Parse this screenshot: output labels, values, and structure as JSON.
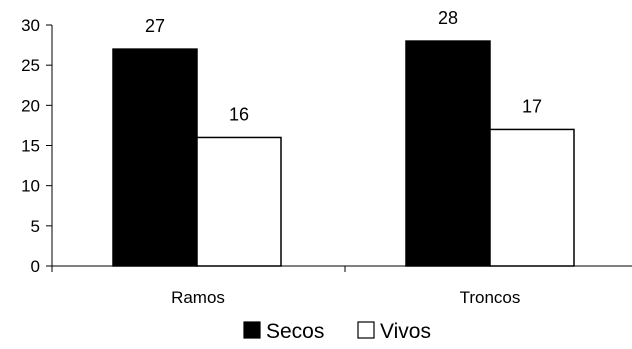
{
  "chart_data": {
    "type": "bar",
    "categories": [
      "Ramos",
      "Troncos"
    ],
    "series": [
      {
        "name": "Secos",
        "values": [
          27,
          28
        ],
        "fill": "#000000"
      },
      {
        "name": "Vivos",
        "values": [
          16,
          17
        ],
        "fill": "#ffffff"
      }
    ],
    "ylim": [
      0,
      30
    ],
    "yticks": [
      0,
      5,
      10,
      15,
      20,
      25,
      30
    ],
    "grid": false,
    "legend_position": "bottom-center",
    "data_labels": true
  }
}
